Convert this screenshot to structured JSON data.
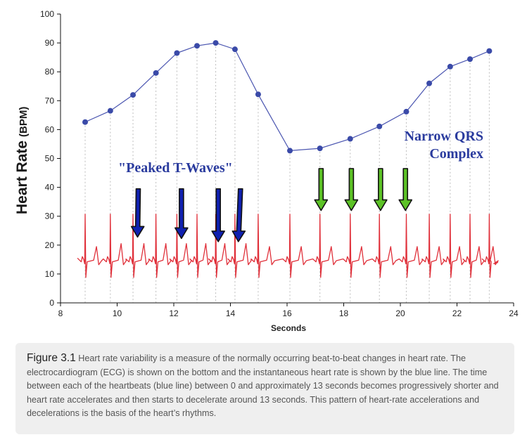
{
  "chart_data": {
    "type": "line",
    "title": "",
    "xlabel": "Seconds",
    "ylabel": "Heart Rate",
    "ylabel_unit": "(BPM)",
    "xlim": [
      8,
      24
    ],
    "ylim": [
      0,
      100
    ],
    "x_ticks": [
      8,
      10,
      12,
      14,
      16,
      18,
      20,
      22,
      24
    ],
    "y_ticks": [
      0,
      10,
      20,
      30,
      40,
      50,
      60,
      70,
      80,
      90,
      100
    ],
    "grid": "vertical dotted lines at each beat",
    "series": [
      {
        "color": "#4a55b0",
        "x": [
          8.87,
          9.76,
          10.56,
          11.37,
          12.11,
          12.82,
          13.48,
          14.16,
          14.98,
          16.1,
          17.16,
          18.23,
          19.26,
          20.21,
          21.02,
          21.76,
          22.46,
          23.14
        ],
        "y": [
          62.6,
          66.5,
          72,
          79.6,
          86.5,
          89,
          90,
          87.8,
          72.2,
          52.7,
          53.5,
          56.8,
          61.1,
          66.2,
          76,
          81.8,
          84.4,
          87.2
        ]
      }
    ],
    "ecg": {
      "color": "#e0303a",
      "beats_x": [
        8.87,
        9.76,
        10.56,
        11.37,
        12.11,
        12.82,
        13.48,
        14.16,
        14.98,
        16.1,
        17.16,
        18.23,
        19.26,
        20.21,
        21.02,
        21.76,
        22.46,
        23.14
      ]
    },
    "annotations": [
      {
        "text": "\"Peaked T-Waves\"",
        "color": "#2a3b9e",
        "arrow_color": "#1020b0",
        "arrows_at_x": [
          10.72,
          12.27,
          13.57,
          14.28
        ]
      },
      {
        "text": "Narrow QRS",
        "text2": "Complex",
        "color": "#2a3b9e",
        "arrow_color": "#5cc226",
        "arrows_at_x": [
          17.2,
          18.27,
          19.3,
          20.18
        ]
      }
    ]
  },
  "caption": {
    "title": "Figure 3.1",
    "text": "Heart rate variability is a measure of the normally occurring beat-to-beat changes in heart rate. The electrocardiogram (ECG) is shown on the bottom and the instantaneous heart rate is shown by the blue line. The time between each of the heartbeats (blue line) between 0 and approximately 13 seconds becomes progressively shorter and heart rate accelerates and then starts to decelerate around 13 seconds. This pattern of heart-rate accelerations and decelerations is the basis of the heart’s rhythms."
  }
}
